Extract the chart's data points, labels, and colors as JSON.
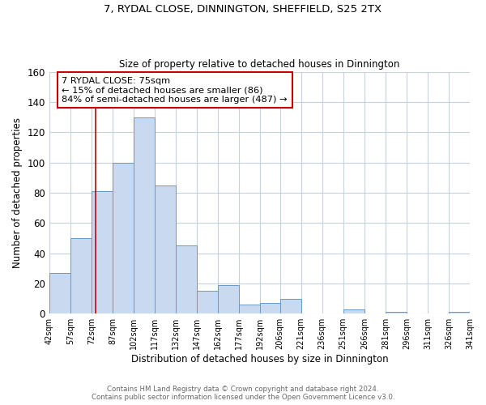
{
  "title": "7, RYDAL CLOSE, DINNINGTON, SHEFFIELD, S25 2TX",
  "subtitle": "Size of property relative to detached houses in Dinnington",
  "xlabel": "Distribution of detached houses by size in Dinnington",
  "ylabel": "Number of detached properties",
  "bar_edges": [
    42,
    57,
    72,
    87,
    102,
    117,
    132,
    147,
    162,
    177,
    192,
    206,
    221,
    236,
    251,
    266,
    281,
    296,
    311,
    326,
    341
  ],
  "bar_heights": [
    27,
    50,
    81,
    100,
    130,
    85,
    45,
    15,
    19,
    6,
    7,
    10,
    0,
    0,
    3,
    0,
    1,
    0,
    0,
    1
  ],
  "bar_color": "#c9d9f0",
  "bar_edgecolor": "#6699cc",
  "property_line_x": 75,
  "property_line_color": "#cc0000",
  "ylim": [
    0,
    160
  ],
  "yticks": [
    0,
    20,
    40,
    60,
    80,
    100,
    120,
    140,
    160
  ],
  "tick_labels": [
    "42sqm",
    "57sqm",
    "72sqm",
    "87sqm",
    "102sqm",
    "117sqm",
    "132sqm",
    "147sqm",
    "162sqm",
    "177sqm",
    "192sqm",
    "206sqm",
    "221sqm",
    "236sqm",
    "251sqm",
    "266sqm",
    "281sqm",
    "296sqm",
    "311sqm",
    "326sqm",
    "341sqm"
  ],
  "annotation_line1": "7 RYDAL CLOSE: 75sqm",
  "annotation_line2": "← 15% of detached houses are smaller (86)",
  "annotation_line3": "84% of semi-detached houses are larger (487) →",
  "annotation_box_color": "#cc0000",
  "background_color": "#ffffff",
  "grid_color": "#c8d0dc",
  "footer_line1": "Contains HM Land Registry data © Crown copyright and database right 2024.",
  "footer_line2": "Contains public sector information licensed under the Open Government Licence v3.0."
}
